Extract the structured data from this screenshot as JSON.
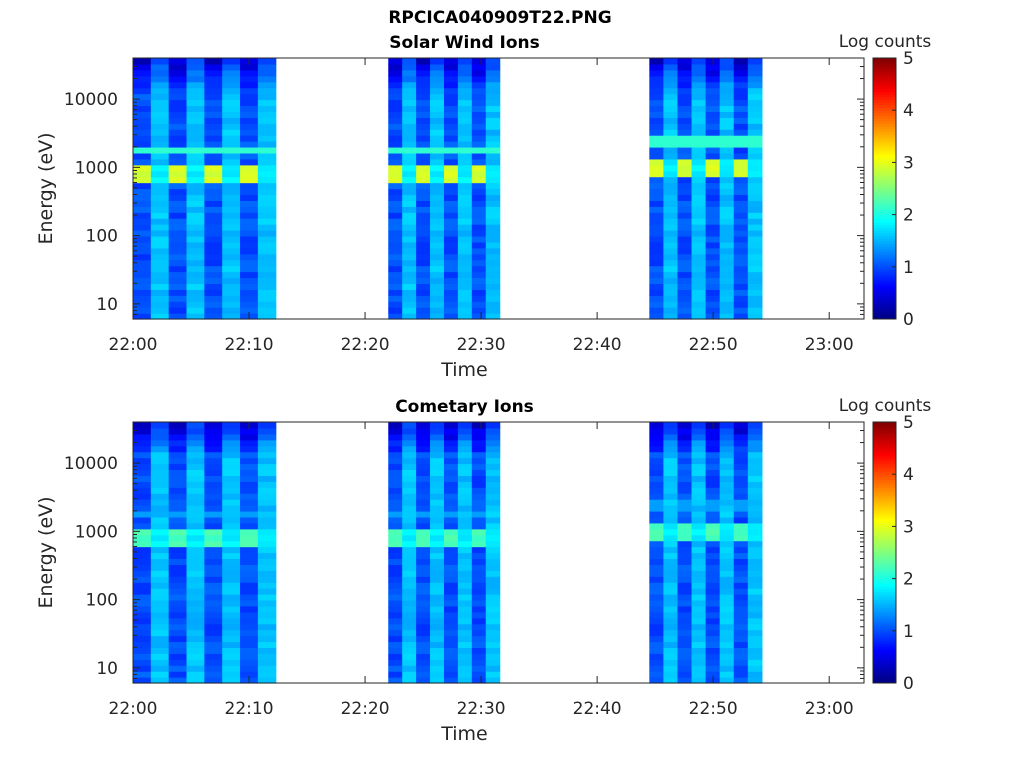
{
  "figure": {
    "title": "RPCICA040909T22.PNG"
  },
  "chart_data": [
    {
      "type": "heatmap",
      "title": "Solar Wind Ions",
      "xlabel": "Time",
      "ylabel": "Energy (eV)",
      "x_ticks": [
        "22:00",
        "22:10",
        "22:20",
        "22:30",
        "22:40",
        "22:50",
        "23:00"
      ],
      "y_ticks": [
        "10",
        "100",
        "1000",
        "10000"
      ],
      "y_scale": "log",
      "xlim": [
        "22:00",
        "23:03"
      ],
      "ylim": [
        6,
        40000
      ],
      "colorbar": {
        "label": "Log counts",
        "ticks": [
          "0",
          "1",
          "2",
          "3",
          "4",
          "5"
        ],
        "range": [
          0,
          5
        ],
        "colormap": "jet"
      },
      "data_blocks": [
        {
          "start": "22:00",
          "end": "22:12.3",
          "peak_log_counts": 3.0,
          "peak_energy_eV": 800
        },
        {
          "start": "22:22",
          "end": "22:31.6",
          "peak_log_counts": 3.0,
          "peak_energy_eV": 800
        },
        {
          "start": "22:44.5",
          "end": "22:54.2",
          "peak_log_counts": 3.0,
          "peak_energy_eV": 1000
        }
      ]
    },
    {
      "type": "heatmap",
      "title": "Cometary Ions",
      "xlabel": "Time",
      "ylabel": "Energy (eV)",
      "x_ticks": [
        "22:00",
        "22:10",
        "22:20",
        "22:30",
        "22:40",
        "22:50",
        "23:00"
      ],
      "y_ticks": [
        "10",
        "100",
        "1000",
        "10000"
      ],
      "y_scale": "log",
      "xlim": [
        "22:00",
        "23:03"
      ],
      "ylim": [
        6,
        40000
      ],
      "colorbar": {
        "label": "Log counts",
        "ticks": [
          "0",
          "1",
          "2",
          "3",
          "4",
          "5"
        ],
        "range": [
          0,
          5
        ],
        "colormap": "jet"
      },
      "data_blocks": [
        {
          "start": "22:00",
          "end": "22:12.3",
          "peak_log_counts": 2.3,
          "peak_energy_eV": 800
        },
        {
          "start": "22:22",
          "end": "22:31.6",
          "peak_log_counts": 2.3,
          "peak_energy_eV": 800
        },
        {
          "start": "22:44.5",
          "end": "22:54.2",
          "peak_log_counts": 2.3,
          "peak_energy_eV": 1000
        }
      ]
    }
  ]
}
